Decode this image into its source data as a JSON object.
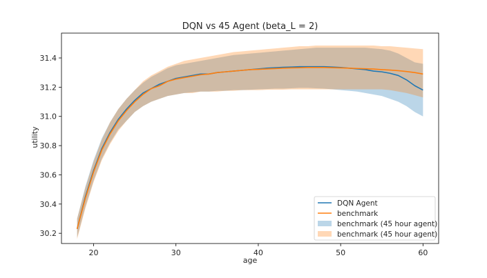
{
  "chart_data": {
    "type": "line",
    "title": "DQN vs 45 Agent (beta_L = 2)",
    "xlabel": "age",
    "ylabel": "utility",
    "xlim": [
      16.1,
      61.9
    ],
    "ylim": [
      30.13,
      31.57
    ],
    "xticks": [
      20,
      30,
      40,
      50,
      60
    ],
    "yticks": [
      30.2,
      30.4,
      30.6,
      30.8,
      31.0,
      31.2,
      31.4
    ],
    "ytick_labels": [
      "30.2",
      "30.4",
      "30.6",
      "30.8",
      "31.0",
      "31.2",
      "31.4"
    ],
    "grid": false,
    "legend_position": "lower-right",
    "x": [
      18,
      19,
      20,
      21,
      22,
      23,
      24,
      25,
      26,
      27,
      28,
      29,
      30,
      31,
      32,
      33,
      34,
      35,
      36,
      37,
      38,
      39,
      40,
      41,
      42,
      43,
      44,
      45,
      46,
      47,
      48,
      49,
      50,
      51,
      52,
      53,
      54,
      55,
      56,
      57,
      58,
      59,
      60
    ],
    "series": [
      {
        "name": "DQN Agent",
        "kind": "line",
        "color": "#1f77b4",
        "values": [
          30.23,
          30.45,
          30.63,
          30.78,
          30.89,
          30.98,
          31.05,
          31.11,
          31.16,
          31.19,
          31.22,
          31.24,
          31.26,
          31.27,
          31.28,
          31.29,
          31.29,
          31.3,
          31.305,
          31.31,
          31.315,
          31.32,
          31.325,
          31.33,
          31.333,
          31.336,
          31.338,
          31.34,
          31.34,
          31.34,
          31.34,
          31.338,
          31.335,
          31.33,
          31.325,
          31.32,
          31.31,
          31.305,
          31.295,
          31.28,
          31.25,
          31.21,
          31.18
        ]
      },
      {
        "name": "benchmark",
        "kind": "line",
        "color": "#ff7f0e",
        "values": [
          30.23,
          30.44,
          30.62,
          30.77,
          30.88,
          30.97,
          31.04,
          31.1,
          31.15,
          31.19,
          31.21,
          31.24,
          31.255,
          31.265,
          31.275,
          31.285,
          31.29,
          31.3,
          31.305,
          31.31,
          31.315,
          31.32,
          31.322,
          31.325,
          31.327,
          31.33,
          31.332,
          31.333,
          31.335,
          31.335,
          31.335,
          31.333,
          31.332,
          31.33,
          31.328,
          31.326,
          31.324,
          31.32,
          31.317,
          31.313,
          31.307,
          31.3,
          31.29
        ]
      },
      {
        "name": "benchmark (45 hour agent)",
        "kind": "band",
        "color": "#1f77b4",
        "opacity": 0.3,
        "lower": [
          30.17,
          30.38,
          30.56,
          30.71,
          30.82,
          30.91,
          30.97,
          31.03,
          31.07,
          31.1,
          31.12,
          31.14,
          31.15,
          31.16,
          31.165,
          31.17,
          31.17,
          31.175,
          31.175,
          31.18,
          31.18,
          31.182,
          31.185,
          31.187,
          31.19,
          31.19,
          31.192,
          31.195,
          31.195,
          31.192,
          31.19,
          31.185,
          31.18,
          31.175,
          31.17,
          31.16,
          31.15,
          31.14,
          31.12,
          31.1,
          31.07,
          31.03,
          31.0
        ],
        "upper": [
          30.3,
          30.52,
          30.7,
          30.85,
          30.96,
          31.05,
          31.12,
          31.18,
          31.23,
          31.27,
          31.3,
          31.33,
          31.35,
          31.36,
          31.37,
          31.38,
          31.39,
          31.4,
          31.41,
          31.42,
          31.425,
          31.43,
          31.435,
          31.44,
          31.445,
          31.45,
          31.455,
          31.46,
          31.465,
          31.47,
          31.47,
          31.47,
          31.47,
          31.47,
          31.47,
          31.47,
          31.465,
          31.46,
          31.45,
          31.43,
          31.4,
          31.37,
          31.36
        ]
      },
      {
        "name": "benchmark (45 hour agent)",
        "kind": "band",
        "color": "#ff7f0e",
        "opacity": 0.3,
        "lower": [
          30.16,
          30.37,
          30.55,
          30.7,
          30.81,
          30.9,
          30.97,
          31.03,
          31.07,
          31.1,
          31.12,
          31.14,
          31.15,
          31.16,
          31.16,
          31.17,
          31.17,
          31.17,
          31.175,
          31.175,
          31.18,
          31.18,
          31.18,
          31.182,
          31.183,
          31.183,
          31.185,
          31.185,
          31.185,
          31.185,
          31.185,
          31.185,
          31.185,
          31.185,
          31.185,
          31.185,
          31.185,
          31.185,
          31.18,
          31.17,
          31.16,
          31.145,
          31.13
        ],
        "upper": [
          30.3,
          30.51,
          30.69,
          30.84,
          30.96,
          31.05,
          31.12,
          31.18,
          31.24,
          31.28,
          31.31,
          31.34,
          31.36,
          31.38,
          31.39,
          31.4,
          31.41,
          31.42,
          31.43,
          31.44,
          31.445,
          31.45,
          31.455,
          31.46,
          31.465,
          31.47,
          31.475,
          31.48,
          31.48,
          31.485,
          31.485,
          31.485,
          31.485,
          31.485,
          31.485,
          31.485,
          31.485,
          31.48,
          31.48,
          31.475,
          31.47,
          31.465,
          31.46
        ]
      }
    ]
  }
}
